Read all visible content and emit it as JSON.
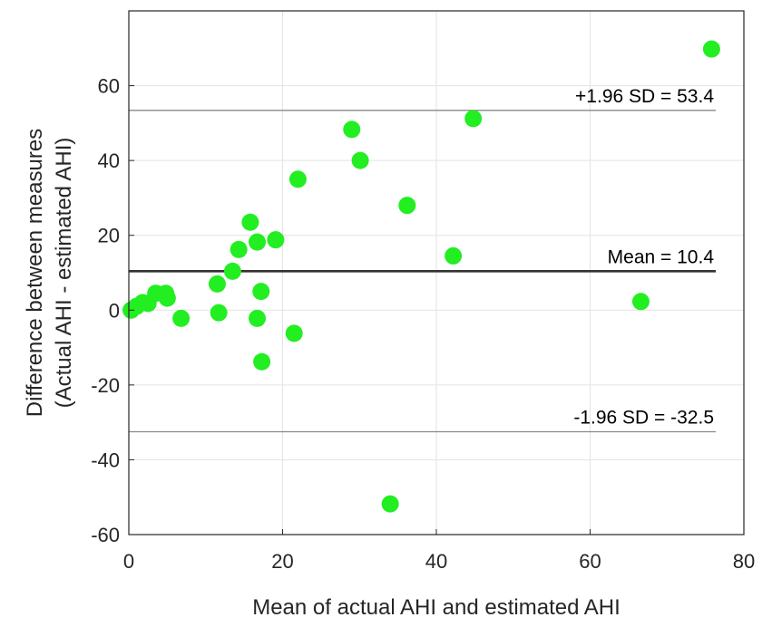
{
  "chart_data": {
    "type": "scatter",
    "title": "",
    "xlabel": "Mean of actual AHI and estimated AHI",
    "ylabel_lines": [
      "Difference between measures",
      "(Actual AHI - estimated AHI)"
    ],
    "xlim": [
      0,
      80
    ],
    "ylim": [
      -60,
      80
    ],
    "xticks": [
      0,
      20,
      40,
      60,
      80
    ],
    "yticks": [
      -60,
      -40,
      -20,
      0,
      20,
      40,
      60
    ],
    "grid": true,
    "point_color": "#22ee22",
    "mean_line_color": "#333333",
    "limit_line_color": "#888888",
    "reference_lines": [
      {
        "name": "upper",
        "y": 53.4,
        "label": "+1.96 SD = 53.4"
      },
      {
        "name": "mean",
        "y": 10.4,
        "label": "Mean = 10.4"
      },
      {
        "name": "lower",
        "y": -32.5,
        "label": "-1.96 SD = -32.5"
      }
    ],
    "points": [
      {
        "x": 0.3,
        "y": 0.0
      },
      {
        "x": 1.0,
        "y": 1.0
      },
      {
        "x": 1.8,
        "y": 2.0
      },
      {
        "x": 2.5,
        "y": 1.8
      },
      {
        "x": 3.5,
        "y": 4.5
      },
      {
        "x": 4.8,
        "y": 4.5
      },
      {
        "x": 5.0,
        "y": 3.2
      },
      {
        "x": 6.8,
        "y": -2.2
      },
      {
        "x": 11.5,
        "y": 7.0
      },
      {
        "x": 11.7,
        "y": -0.7
      },
      {
        "x": 13.5,
        "y": 10.4
      },
      {
        "x": 14.3,
        "y": 16.2
      },
      {
        "x": 15.8,
        "y": 23.5
      },
      {
        "x": 16.7,
        "y": 18.2
      },
      {
        "x": 16.7,
        "y": -2.2
      },
      {
        "x": 17.2,
        "y": 5.0
      },
      {
        "x": 17.3,
        "y": -13.8
      },
      {
        "x": 19.1,
        "y": 18.8
      },
      {
        "x": 21.5,
        "y": -6.2
      },
      {
        "x": 22.0,
        "y": 35.0
      },
      {
        "x": 29.0,
        "y": 48.3
      },
      {
        "x": 30.1,
        "y": 40.0
      },
      {
        "x": 34.0,
        "y": -51.8
      },
      {
        "x": 36.2,
        "y": 28.0
      },
      {
        "x": 42.2,
        "y": 14.5
      },
      {
        "x": 44.8,
        "y": 51.2
      },
      {
        "x": 66.6,
        "y": 2.3
      },
      {
        "x": 75.8,
        "y": 69.8
      }
    ]
  }
}
